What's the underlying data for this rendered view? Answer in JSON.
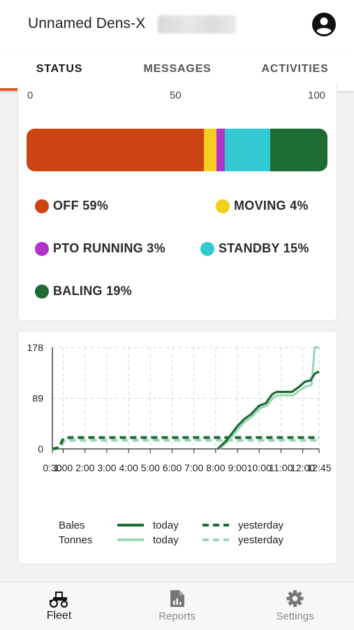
{
  "header": {
    "title": "Unnamed Dens-X"
  },
  "tabs": [
    {
      "label": "STATUS"
    },
    {
      "label": "MESSAGES"
    },
    {
      "label": "ACTIVITIES"
    }
  ],
  "status_bar": {
    "scale": [
      "0",
      "50",
      "100"
    ],
    "segments": [
      {
        "name": "OFF",
        "percent": 59,
        "color": "#cc4411"
      },
      {
        "name": "MOVING",
        "percent": 4,
        "color": "#f5cf1e"
      },
      {
        "name": "PTO RUNNING",
        "percent": 3,
        "color": "#b233cc"
      },
      {
        "name": "STANDBY",
        "percent": 15,
        "color": "#33c9d1"
      },
      {
        "name": "BALING",
        "percent": 19,
        "color": "#1e6b34"
      }
    ],
    "legend": {
      "off": "OFF 59%",
      "moving": "MOVING 4%",
      "pto": "PTO RUNNING 3%",
      "standby": "STANDBY 15%",
      "baling": "BALING 19%"
    }
  },
  "chart_data": {
    "type": "line",
    "y_ticks": [
      "178",
      "89",
      "0"
    ],
    "ylim": [
      0,
      178
    ],
    "x_ticks": [
      "0:30",
      "1:00",
      "2:00",
      "3:00",
      "4:00",
      "5:00",
      "6:00",
      "7:00",
      "8:00",
      "9:00",
      "10:00",
      "11:00",
      "12:00",
      "12:45"
    ],
    "x_hours": [
      0.5,
      1,
      2,
      3,
      4,
      5,
      6,
      7,
      8,
      9,
      10,
      11,
      12,
      12.75
    ],
    "grid": true,
    "legend_position": "bottom",
    "legend": {
      "bales": "Bales",
      "tonnes": "Tonnes",
      "today": "today",
      "yesterday": "yesterday"
    },
    "series": [
      {
        "name": "Bales today",
        "color": "#1e6b34",
        "dash": false,
        "points": [
          [
            8.1,
            0
          ],
          [
            8.5,
            15
          ],
          [
            9,
            40
          ],
          [
            9.3,
            52
          ],
          [
            9.6,
            60
          ],
          [
            10,
            76
          ],
          [
            10.3,
            80
          ],
          [
            10.6,
            96
          ],
          [
            10.8,
            100
          ],
          [
            11,
            100
          ],
          [
            11.5,
            100
          ],
          [
            11.8,
            108
          ],
          [
            12.1,
            118
          ],
          [
            12.35,
            120
          ],
          [
            12.55,
            132
          ],
          [
            12.75,
            136
          ]
        ]
      },
      {
        "name": "Tonnes today",
        "color": "#9dd9b6",
        "dash": false,
        "points": [
          [
            8.15,
            0
          ],
          [
            8.55,
            12
          ],
          [
            9.05,
            36
          ],
          [
            9.35,
            48
          ],
          [
            9.65,
            56
          ],
          [
            10.05,
            72
          ],
          [
            10.35,
            76
          ],
          [
            10.65,
            90
          ],
          [
            10.85,
            94
          ],
          [
            11.05,
            94
          ],
          [
            11.55,
            94
          ],
          [
            11.85,
            102
          ],
          [
            12.15,
            110
          ],
          [
            12.4,
            112
          ],
          [
            12.55,
            178
          ],
          [
            12.75,
            178
          ]
        ]
      },
      {
        "name": "Bales yesterday",
        "color": "#1e6b34",
        "dash": true,
        "points": [
          [
            0.5,
            0
          ],
          [
            0.8,
            2
          ],
          [
            1,
            18
          ],
          [
            1.3,
            20
          ],
          [
            12.75,
            20
          ]
        ]
      },
      {
        "name": "Tonnes yesterday",
        "color": "#9dd9b6",
        "dash": true,
        "points": [
          [
            0.5,
            0
          ],
          [
            0.85,
            2
          ],
          [
            1.05,
            14
          ],
          [
            1.35,
            15
          ],
          [
            12.75,
            15
          ]
        ]
      }
    ]
  },
  "bottom_nav": [
    {
      "label": "Fleet"
    },
    {
      "label": "Reports"
    },
    {
      "label": "Settings"
    }
  ],
  "colors": {
    "accent": "#e8572a",
    "bales": "#1e6b34",
    "tonnes": "#9dd9b6"
  }
}
